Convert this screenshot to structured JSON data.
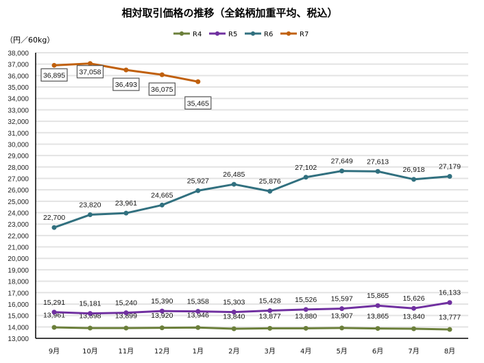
{
  "chart_data": {
    "type": "line",
    "title": "相対取引価格の推移（全銘柄加重平均、税込）",
    "ylabel": "（円／60kg）",
    "xlabel": "",
    "ylim": [
      13000,
      38000
    ],
    "ytick_step": 1000,
    "grid": true,
    "legend_position": "top-center",
    "categories": [
      "9月",
      "10月",
      "11月",
      "12月",
      "1月",
      "2月",
      "3月",
      "4月",
      "5月",
      "6月",
      "7月",
      "8月"
    ],
    "series": [
      {
        "name": "R4",
        "color": "#6b7f3a",
        "label_pos": "above",
        "values": [
          13961,
          13898,
          13899,
          13920,
          13946,
          13840,
          13877,
          13880,
          13907,
          13865,
          13840,
          13777
        ]
      },
      {
        "name": "R5",
        "color": "#7030a0",
        "label_pos": "above",
        "values": [
          15291,
          15181,
          15240,
          15390,
          15358,
          15303,
          15428,
          15526,
          15597,
          15865,
          15626,
          16133
        ]
      },
      {
        "name": "R6",
        "color": "#31707f",
        "label_pos": "above",
        "values": [
          22700,
          23820,
          23961,
          24665,
          25927,
          26485,
          25876,
          27102,
          27649,
          27613,
          26918,
          27179
        ]
      },
      {
        "name": "R7",
        "color": "#c0600d",
        "label_pos": "boxed-below",
        "values": [
          36895,
          37058,
          36493,
          36075,
          35465,
          null,
          null,
          null,
          null,
          null,
          null,
          null
        ]
      }
    ]
  }
}
